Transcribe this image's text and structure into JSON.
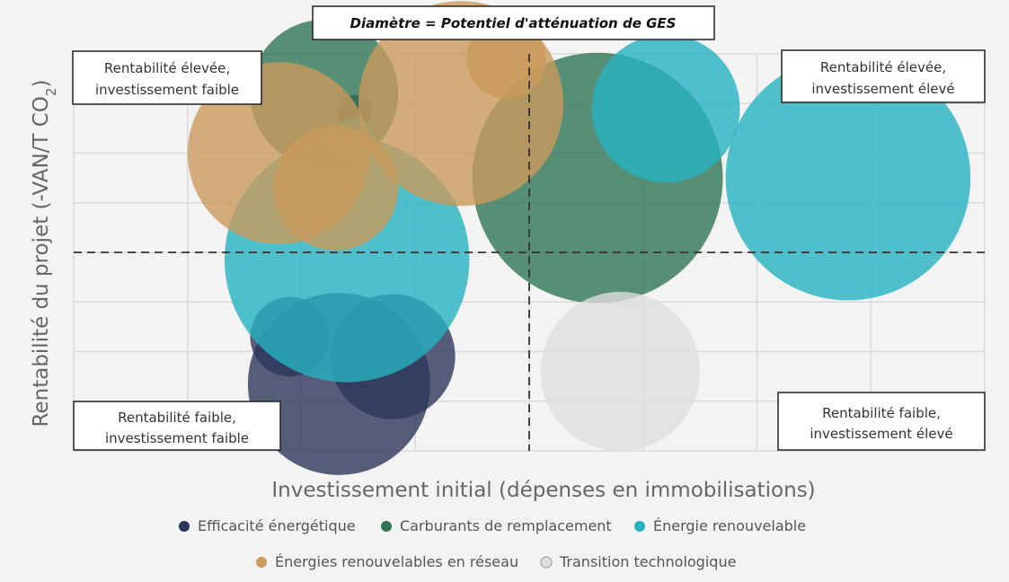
{
  "chart_data": {
    "type": "bubble",
    "title": "Diamètre = Potentiel d'atténuation de GES",
    "xlabel": "Investissement initial (dépenses en immobilisations)",
    "ylabel": "Rentabilité du projet (-VAN/T CO2)",
    "ylabel_parts": {
      "main": "Rentabilité du projet (-VAN/T CO",
      "sub": "2",
      "end": ")"
    },
    "xlim": [
      0,
      8
    ],
    "ylim": [
      0,
      8
    ],
    "grid": true,
    "threshold": {
      "x": 4,
      "y": 4
    },
    "quadrants": {
      "top_left": [
        "Rentabilité élevée,",
        "investissement faible"
      ],
      "top_right": [
        "Rentabilité élevée,",
        "investissement élevé"
      ],
      "bottom_left": [
        "Rentabilité faible,",
        "investissement faible"
      ],
      "bottom_right": [
        "Rentabilité faible,",
        "investissement élevé"
      ]
    },
    "legend_position": "bottom",
    "series": [
      {
        "name": "Efficacité énergétique",
        "color": "#2d375a",
        "points": [
          {
            "x": 2.47,
            "y": 6.83,
            "d": 0.3
          },
          {
            "x": 2.23,
            "y": 6.0,
            "d": 0.25
          },
          {
            "x": 1.9,
            "y": 2.3,
            "d": 0.7
          },
          {
            "x": 2.8,
            "y": 1.9,
            "d": 1.1
          },
          {
            "x": 2.33,
            "y": 1.35,
            "d": 1.6
          }
        ]
      },
      {
        "name": "Carburants de remplacement",
        "color": "#2f7456",
        "points": [
          {
            "x": 2.2,
            "y": 7.2,
            "d": 1.3
          },
          {
            "x": 4.6,
            "y": 5.5,
            "d": 2.2
          }
        ]
      },
      {
        "name": "Énergie renouvelable",
        "color": "#26b3c0",
        "points": [
          {
            "x": 2.47,
            "y": 6.3,
            "d": 0.35
          },
          {
            "x": 5.2,
            "y": 6.9,
            "d": 1.3
          },
          {
            "x": 6.8,
            "y": 5.5,
            "d": 2.15
          },
          {
            "x": 2.4,
            "y": 3.85,
            "d": 2.15
          }
        ]
      },
      {
        "name": "Énergies renouvelables en réseau",
        "color": "#c99a5b",
        "points": [
          {
            "x": 3.8,
            "y": 7.9,
            "d": 0.7
          },
          {
            "x": 3.4,
            "y": 7.0,
            "d": 1.8
          },
          {
            "x": 1.8,
            "y": 6.0,
            "d": 1.6
          },
          {
            "x": 2.3,
            "y": 5.3,
            "d": 1.1
          }
        ]
      },
      {
        "name": "Transition technologique",
        "color": "#dedede",
        "points": [
          {
            "x": 4.8,
            "y": 1.6,
            "d": 1.4
          }
        ]
      }
    ]
  }
}
